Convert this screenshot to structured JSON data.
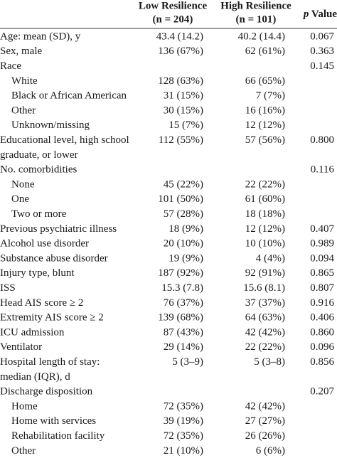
{
  "header": {
    "low": [
      "Low Resilience",
      "(n = 204)"
    ],
    "high": [
      "High Resilience",
      "(n = 101)"
    ],
    "p": [
      "p",
      "Value"
    ]
  },
  "rows": [
    {
      "label": "Age: mean (SD), y",
      "low": "43.4 (14.2)",
      "high": "40.2 (14.4)",
      "p": "0.067"
    },
    {
      "label": "Sex, male",
      "low": "136 (67%)",
      "high": "62 (61%)",
      "p": "0.363"
    },
    {
      "label": "Race",
      "p": "0.145",
      "items": [
        {
          "label": "White",
          "low": "128 (63%)",
          "high": "66 (65%)"
        },
        {
          "label": "Black or African American",
          "low": "31 (15%)",
          "high": "7 (7%)"
        },
        {
          "label": "Other",
          "low": "30 (15%)",
          "high": "16 (16%)"
        },
        {
          "label": "Unknown/missing",
          "low": "15 (7%)",
          "high": "12 (12%)"
        }
      ]
    },
    {
      "label": [
        "Educational level, high school",
        "graduate, or lower"
      ],
      "low": "112 (55%)",
      "high": "57 (56%)",
      "p": "0.800"
    },
    {
      "label": "No. comorbidities",
      "p": "0.116",
      "items": [
        {
          "label": "None",
          "low": "45 (22%)",
          "high": "22 (22%)"
        },
        {
          "label": "One",
          "low": "101 (50%)",
          "high": "61 (60%)"
        },
        {
          "label": "Two or more",
          "low": "57 (28%)",
          "high": "18 (18%)"
        }
      ]
    },
    {
      "label": "Previous psychiatric illness",
      "low": "18 (9%)",
      "high": "12 (12%)",
      "p": "0.407"
    },
    {
      "label": "Alcohol use disorder",
      "low": "20 (10%)",
      "high": "10 (10%)",
      "p": "0.989"
    },
    {
      "label": "Substance abuse disorder",
      "low": "19 (9%)",
      "high": "4 (4%)",
      "p": "0.094"
    },
    {
      "label": "Injury type, blunt",
      "low": "187 (92%)",
      "high": "92 (91%)",
      "p": "0.865"
    },
    {
      "label": "ISS",
      "low": "15.3 (7.8)",
      "high": "15.6 (8.1)",
      "p": "0.807"
    },
    {
      "label": "Head AIS score ≥ 2",
      "low": "76 (37%)",
      "high": "37 (37%)",
      "p": "0.916"
    },
    {
      "label": "Extremity AIS score ≥ 2",
      "low": "139 (68%)",
      "high": "64 (63%)",
      "p": "0.406"
    },
    {
      "label": "ICU admission",
      "low": "87 (43%)",
      "high": "42 (42%)",
      "p": "0.860"
    },
    {
      "label": "Ventilator",
      "low": "29 (14%)",
      "high": "22 (22%)",
      "p": "0.096"
    },
    {
      "label": [
        "Hospital length of stay:",
        "median (IQR), d"
      ],
      "low": "5 (3–9)",
      "high": "5 (3–8)",
      "p": "0.856"
    },
    {
      "label": "Discharge disposition",
      "p": "0.207",
      "items": [
        {
          "label": "Home",
          "low": "72 (35%)",
          "high": "42 (42%)"
        },
        {
          "label": "Home with services",
          "low": "39 (19%)",
          "high": "27 (27%)"
        },
        {
          "label": "Rehabilitation facility",
          "low": "72 (35%)",
          "high": "26 (26%)"
        },
        {
          "label": "Other",
          "low": "21 (10%)",
          "high": "6 (6%)"
        }
      ]
    }
  ]
}
